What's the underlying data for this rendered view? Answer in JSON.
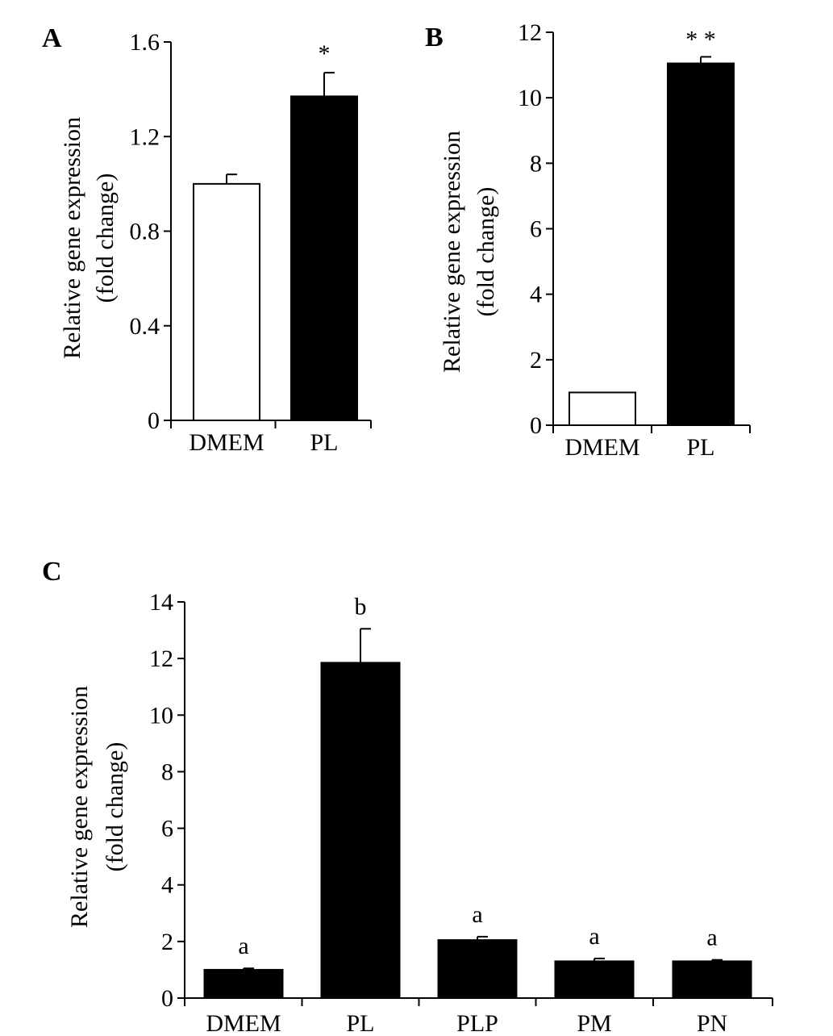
{
  "chart_data": [
    {
      "panel": "A",
      "type": "bar",
      "ylabel": "Relative gene expression",
      "ylabel2": "(fold change)",
      "ylim": [
        0,
        1.6
      ],
      "yticks": [
        "0",
        "0.4",
        "0.8",
        "1.2",
        "1.6"
      ],
      "ytick_values": [
        0,
        0.4,
        0.8,
        1.2,
        1.6
      ],
      "categories": [
        "DMEM",
        "PL"
      ],
      "values": [
        1.0,
        1.37
      ],
      "errors": [
        0.04,
        0.1
      ],
      "bar_colors": [
        "#ffffff",
        "#000000"
      ],
      "annotations": [
        "",
        "*"
      ]
    },
    {
      "panel": "B",
      "type": "bar",
      "ylabel": "Relative gene expression",
      "ylabel2": "(fold change)",
      "ylim": [
        0,
        12
      ],
      "yticks": [
        "0",
        "2",
        "4",
        "6",
        "8",
        "10",
        "12"
      ],
      "ytick_values": [
        0,
        2,
        4,
        6,
        8,
        10,
        12
      ],
      "categories": [
        "DMEM",
        "PL"
      ],
      "values": [
        1.0,
        11.05
      ],
      "errors": [
        0,
        0.2
      ],
      "bar_colors": [
        "#ffffff",
        "#000000"
      ],
      "annotations": [
        "",
        "* *"
      ]
    },
    {
      "panel": "C",
      "type": "bar",
      "ylabel": "Relative gene expression",
      "ylabel2": "(fold change)",
      "ylim": [
        0,
        14
      ],
      "yticks": [
        "0",
        "2",
        "4",
        "6",
        "8",
        "10",
        "12",
        "14"
      ],
      "ytick_values": [
        0,
        2,
        4,
        6,
        8,
        10,
        12,
        14
      ],
      "categories": [
        "DMEM",
        "PL",
        "PLP",
        "PM",
        "PN"
      ],
      "values": [
        1.0,
        11.85,
        2.05,
        1.3,
        1.3
      ],
      "errors": [
        0.05,
        1.2,
        0.12,
        0.1,
        0.05
      ],
      "bar_colors": [
        "#000000",
        "#000000",
        "#000000",
        "#000000",
        "#000000"
      ],
      "annotations": [
        "a",
        "b",
        "a",
        "a",
        "a"
      ]
    }
  ]
}
